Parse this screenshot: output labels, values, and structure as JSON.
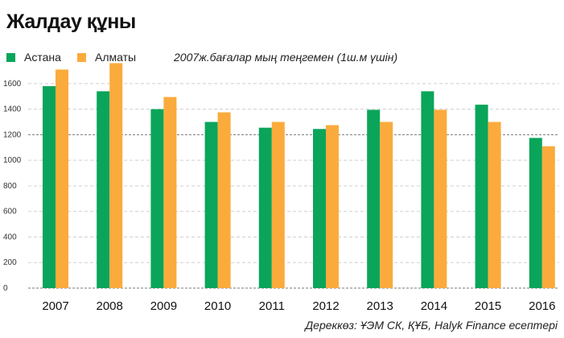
{
  "title": "Жалдау құны",
  "note": "2007ж.бағалар мың теңгемен  (1ш.м үшін)",
  "source": "Дереккөз: ҰЭМ СК, ҚҰБ, Halyk Finance есептері",
  "chart_data": {
    "type": "bar",
    "categories": [
      "2007",
      "2008",
      "2009",
      "2010",
      "2011",
      "2012",
      "2013",
      "2014",
      "2015",
      "2016"
    ],
    "series": [
      {
        "name": "Астана",
        "color": "#0aa55a",
        "values": [
          1580,
          1540,
          1400,
          1300,
          1255,
          1245,
          1395,
          1540,
          1435,
          1175
        ]
      },
      {
        "name": "Алматы",
        "color": "#fbab3c",
        "values": [
          1710,
          1760,
          1495,
          1375,
          1300,
          1275,
          1300,
          1395,
          1300,
          1110
        ]
      }
    ],
    "ylim": [
      0,
      1700
    ],
    "yticks": [
      0,
      200,
      400,
      600,
      800,
      1000,
      1200,
      1400,
      1600
    ],
    "emphasized_gridline": 1200,
    "grid": true,
    "legend_position": "top-left"
  }
}
